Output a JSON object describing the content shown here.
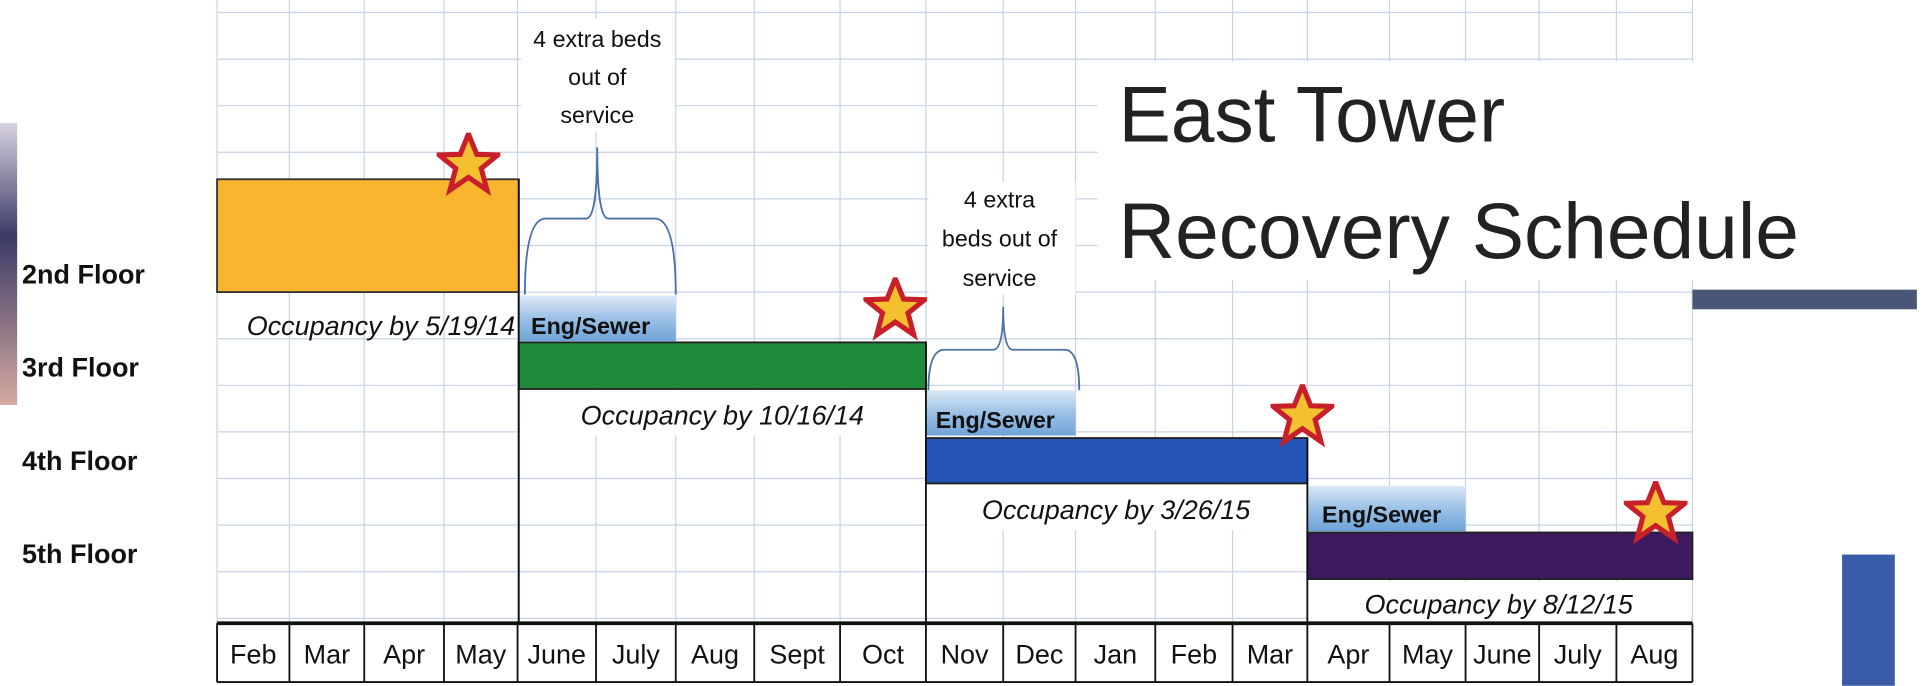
{
  "title": {
    "line1": "East Tower",
    "line2": "Recovery Schedule"
  },
  "floors": [
    "2nd Floor",
    "3rd Floor",
    "4th Floor",
    "5th Floor"
  ],
  "months": [
    "Feb",
    "Mar",
    "Apr",
    "May",
    "June",
    "July",
    "Aug",
    "Sept",
    "Oct",
    "Nov",
    "Dec",
    "Jan",
    "Feb",
    "Mar",
    "Apr",
    "May",
    "June",
    "July",
    "Aug"
  ],
  "tasks": [
    {
      "occupancy": "Occupancy by 5/19/14"
    },
    {
      "eng": "Eng/Sewer",
      "occupancy": "Occupancy by 10/16/14"
    },
    {
      "eng": "Eng/Sewer",
      "occupancy": "Occupancy by 3/26/15"
    },
    {
      "eng": "Eng/Sewer",
      "occupancy": "Occupancy by 8/12/15"
    }
  ],
  "annotations": [
    {
      "lines": [
        "4 extra beds",
        "out of",
        "service"
      ]
    },
    {
      "lines": [
        "4 extra",
        "beds out of",
        "service"
      ]
    }
  ]
}
